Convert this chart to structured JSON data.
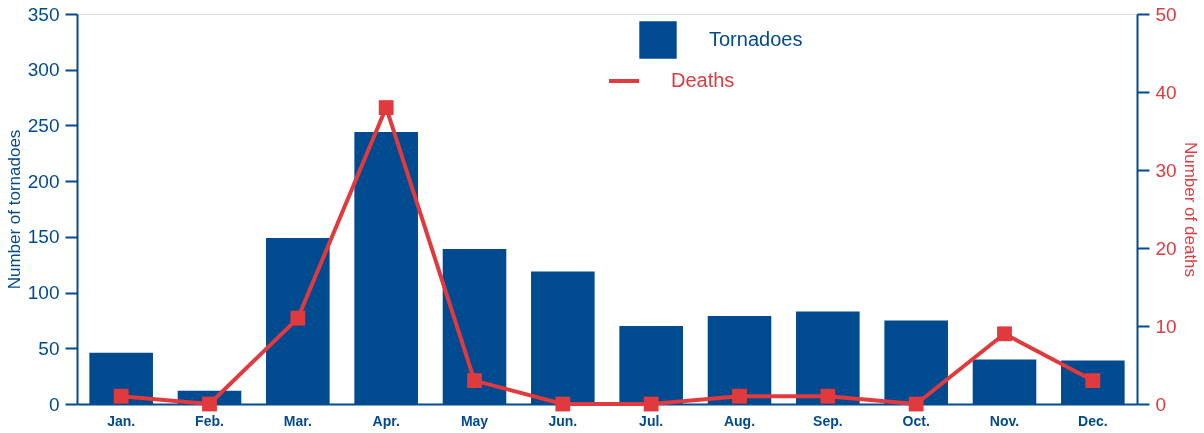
{
  "chart_data": {
    "type": "bar",
    "categories": [
      "Jan.",
      "Feb.",
      "Mar.",
      "Apr.",
      "May",
      "Jun.",
      "Jul.",
      "Aug.",
      "Sep.",
      "Oct.",
      "Nov.",
      "Dec."
    ],
    "series": [
      {
        "name": "Tornadoes",
        "color": "#004a8f",
        "values": [
          46,
          12,
          149,
          244,
          139,
          119,
          70,
          79,
          83,
          75,
          40,
          39
        ]
      },
      {
        "name": "Deaths",
        "type": "line",
        "axis": "y2",
        "color": "#e03a3e",
        "marker": "square",
        "values": [
          1,
          0,
          11,
          38,
          3,
          0,
          0,
          1,
          1,
          0,
          9,
          3
        ]
      }
    ],
    "ylabel": "Number of tornadoes",
    "y2label": "Number of deaths",
    "ylim": [
      0,
      350
    ],
    "yticks": [
      0,
      50,
      100,
      150,
      200,
      250,
      300,
      350
    ],
    "y2lim": [
      0,
      50
    ],
    "y2ticks": [
      0,
      10,
      20,
      30,
      40,
      50
    ],
    "grid": false,
    "legend": "top"
  }
}
